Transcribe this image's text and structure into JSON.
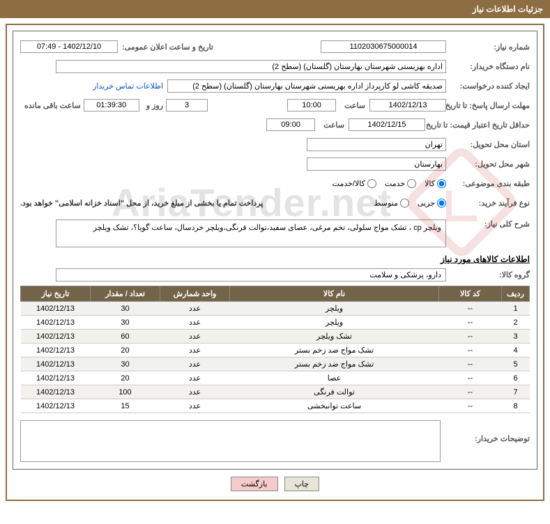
{
  "header": {
    "title": "جزئیات اطلاعات نیاز"
  },
  "form": {
    "need_no_label": "شماره نیاز:",
    "need_no": "1102030675000014",
    "announce_label": "تاریخ و ساعت اعلان عمومی:",
    "announce_value": "1402/12/10 - 07:49",
    "buyer_org_label": "نام دستگاه خریدار:",
    "buyer_org": "اداره بهزیستی شهرستان بهارستان (گلستان) (سطح 2)",
    "requester_label": "ایجاد کننده درخواست:",
    "requester": "صدیقه کاشی لو کارپرداز اداره بهزیستی شهرستان بهارستان (گلستان) (سطح 2)",
    "contact_link": "اطلاعات تماس خریدار",
    "deadline_reply_label": "مهلت ارسال پاسخ: تا تاریخ:",
    "deadline_reply_date": "1402/12/13",
    "hour_label": "ساعت",
    "deadline_reply_time": "10:00",
    "days_count": "3",
    "days_and": "روز و",
    "remaining_time": "01:39:30",
    "remaining_label": "ساعت باقی مانده",
    "price_valid_label": "حداقل تاریخ اعتبار قیمت: تا تاریخ:",
    "price_valid_date": "1402/12/15",
    "price_valid_time": "09:00",
    "province_label": "استان محل تحویل:",
    "province": "تهران",
    "city_label": "شهر محل تحویل:",
    "city": "بهارستان",
    "category_label": "طبقه بندی موضوعی:",
    "cat_goods": "کالا",
    "cat_service": "خدمت",
    "cat_both": "کالا/خدمت",
    "process_label": "نوع فرآیند خرید:",
    "proc_small": "جزیی",
    "proc_medium": "متوسط",
    "payment_note": "پرداخت تمام یا بخشی از مبلغ خرید، از محل \"اسناد خزانه اسلامی\" خواهد بود.",
    "summary_label": "شرح کلی نیاز:",
    "summary_text": "ویلچر cp ، تشک مواج سلولی، تخم مرغی، عصای سفید،توالت فرنگی،ویلچر خردسال، ساعت گویا؟، تشک ویلچر",
    "goods_info_title": "اطلاعات کالاهای مورد نیاز",
    "group_label": "گروه کالا:",
    "group_value": "دارو، پزشکی و سلامت",
    "buyer_desc_label": "توضیحات خریدار:"
  },
  "table": {
    "headers": {
      "row": "ردیف",
      "code": "کد کالا",
      "name": "نام کالا",
      "unit": "واحد شمارش",
      "qty": "تعداد / مقدار",
      "date": "تاریخ نیاز"
    },
    "rows": [
      {
        "n": "1",
        "code": "--",
        "name": "ویلچر",
        "unit": "عدد",
        "qty": "30",
        "date": "1402/12/13"
      },
      {
        "n": "2",
        "code": "--",
        "name": "ویلچر",
        "unit": "عدد",
        "qty": "30",
        "date": "1402/12/13"
      },
      {
        "n": "3",
        "code": "--",
        "name": "تشک ویلچر",
        "unit": "عدد",
        "qty": "60",
        "date": "1402/12/13"
      },
      {
        "n": "4",
        "code": "--",
        "name": "تشک مواج ضد زخم بستر",
        "unit": "عدد",
        "qty": "20",
        "date": "1402/12/13"
      },
      {
        "n": "5",
        "code": "--",
        "name": "تشک مواج ضد زخم بستر",
        "unit": "عدد",
        "qty": "30",
        "date": "1402/12/13"
      },
      {
        "n": "6",
        "code": "--",
        "name": "عصا",
        "unit": "عدد",
        "qty": "20",
        "date": "1402/12/13"
      },
      {
        "n": "7",
        "code": "--",
        "name": "توالت فرنگی",
        "unit": "عدد",
        "qty": "100",
        "date": "1402/12/13"
      },
      {
        "n": "8",
        "code": "--",
        "name": "ساعت توانبخشی",
        "unit": "عدد",
        "qty": "15",
        "date": "1402/12/13"
      }
    ]
  },
  "buttons": {
    "print": "چاپ",
    "back": "بازگشت"
  },
  "watermark": {
    "text": "AriaTender.net"
  },
  "colors": {
    "header_bg": "#8d6e43",
    "th_bg": "#736449",
    "btn_back_bg": "#f4cccc",
    "link": "#0055cc"
  }
}
